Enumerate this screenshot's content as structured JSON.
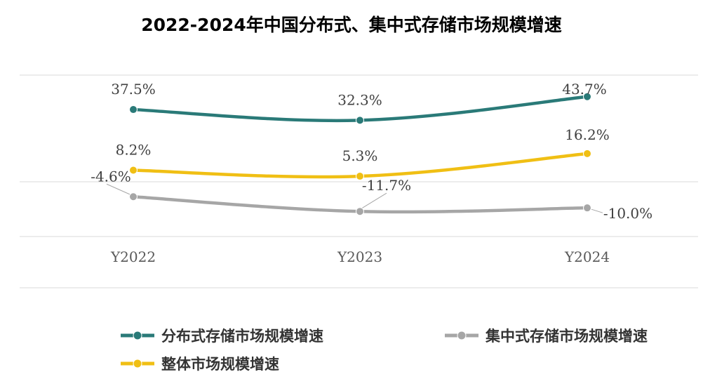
{
  "chart_data": {
    "type": "line",
    "title": "2022-2024年中国分布式、集中式存储市场规模增速",
    "categories": [
      "Y2022",
      "Y2023",
      "Y2024"
    ],
    "unit": "%",
    "ylim": [
      -15,
      45
    ],
    "series": [
      {
        "name": "分布式存储市场规模增速",
        "color": "#2a7a78",
        "values": [
          37.5,
          32.3,
          43.7
        ],
        "labels": [
          "37.5%",
          "32.3%",
          "43.7%"
        ]
      },
      {
        "name": "集中式存储市场规模增速",
        "color": "#a6a6a6",
        "values": [
          -4.6,
          -11.7,
          -10.0
        ],
        "labels": [
          "-4.6%",
          "-11.7%",
          "-10.0%"
        ]
      },
      {
        "name": "整体市场规模增速",
        "color": "#f0bf14",
        "values": [
          8.2,
          5.3,
          16.2
        ],
        "labels": [
          "8.2%",
          "5.3%",
          "16.2%"
        ]
      }
    ]
  }
}
